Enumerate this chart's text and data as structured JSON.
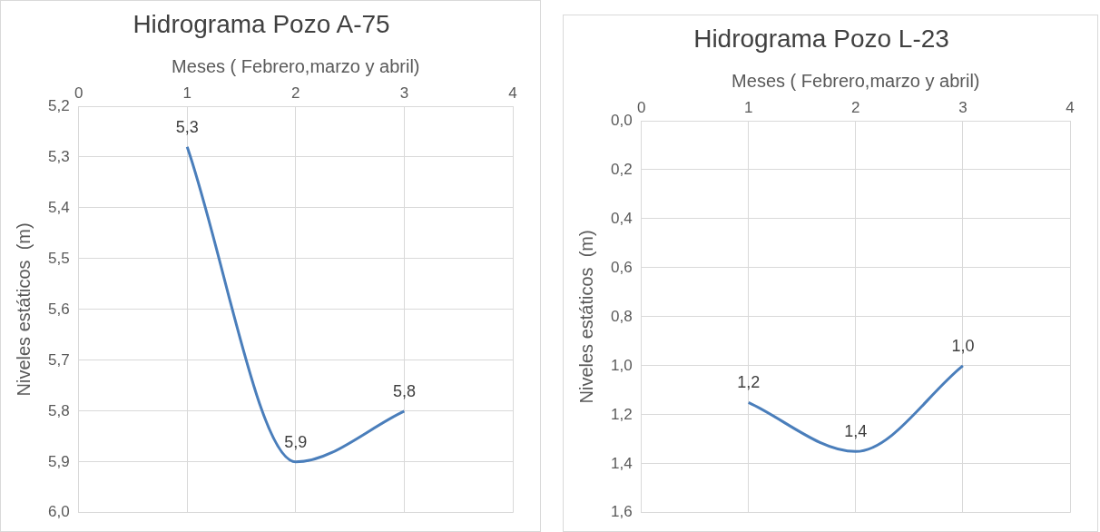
{
  "chart_data": [
    {
      "type": "line",
      "title": "Hidrograma Pozo A-75",
      "xlabel": "Meses ( Febrero,marzo y abril)",
      "ylabel": "Niveles estáticos  (m)",
      "x": [
        1,
        2,
        3
      ],
      "values": [
        5.28,
        5.9,
        5.8
      ],
      "value_labels": [
        "5,3",
        "5,9",
        "5,8"
      ],
      "color": "#4a7ebb",
      "marker": "none",
      "xlim": [
        0,
        4
      ],
      "xticks": [
        0,
        1,
        2,
        3,
        4
      ],
      "ylim": [
        6.0,
        5.2
      ],
      "yticks": [
        {
          "value": 5.2,
          "label": "5,2"
        },
        {
          "value": 5.3,
          "label": "5,3"
        },
        {
          "value": 5.4,
          "label": "5,4"
        },
        {
          "value": 5.5,
          "label": "5,5"
        },
        {
          "value": 5.6,
          "label": "5,6"
        },
        {
          "value": 5.7,
          "label": "5,7"
        },
        {
          "value": 5.8,
          "label": "5,8"
        },
        {
          "value": 5.9,
          "label": "5,9"
        },
        {
          "value": 6.0,
          "label": "6,0"
        }
      ],
      "grid": true
    },
    {
      "type": "line",
      "title": "Hidrograma Pozo L-23",
      "xlabel": "Meses ( Febrero,marzo y abril)",
      "ylabel": "Niveles estáticos  (m)",
      "x": [
        1,
        2,
        3
      ],
      "values": [
        1.15,
        1.35,
        1.0
      ],
      "value_labels": [
        "1,2",
        "1,4",
        "1,0"
      ],
      "color": "#4a7ebb",
      "marker": "none",
      "xlim": [
        0,
        4
      ],
      "xticks": [
        0,
        1,
        2,
        3,
        4
      ],
      "ylim": [
        1.6,
        0.0
      ],
      "yticks": [
        {
          "value": 0,
          "label": "0,0"
        },
        {
          "value": 0.2,
          "label": "0,2"
        },
        {
          "value": 0.4,
          "label": "0,4"
        },
        {
          "value": 0.6,
          "label": "0,6"
        },
        {
          "value": 0.8,
          "label": "0,8"
        },
        {
          "value": 1.0,
          "label": "1,0"
        },
        {
          "value": 1.2,
          "label": "1,2"
        },
        {
          "value": 1.4,
          "label": "1,4"
        },
        {
          "value": 1.6,
          "label": "1,6"
        }
      ],
      "grid": true
    }
  ]
}
